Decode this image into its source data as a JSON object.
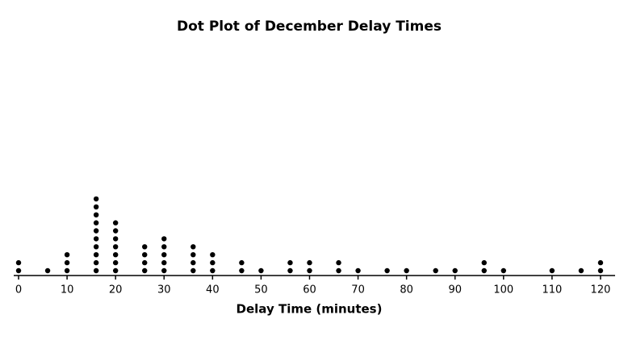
{
  "chart_data": {
    "type": "dot",
    "title": "Dot Plot of December Delay Times",
    "x_label": "Delay Time (minutes)",
    "x": [
      0,
      6,
      10,
      16,
      20,
      26,
      30,
      36,
      40,
      46,
      50,
      56,
      60,
      66,
      70,
      76,
      80,
      86,
      90,
      96,
      100,
      110,
      116,
      120
    ],
    "values": [
      2,
      1,
      3,
      10,
      7,
      4,
      5,
      4,
      3,
      2,
      1,
      2,
      2,
      2,
      1,
      1,
      1,
      1,
      1,
      2,
      1,
      1,
      1,
      2
    ],
    "color": "#000000",
    "xlim": [
      -1,
      123
    ],
    "xticks": [
      0,
      10,
      20,
      30,
      40,
      50,
      60,
      70,
      80,
      90,
      100,
      110,
      120
    ]
  }
}
